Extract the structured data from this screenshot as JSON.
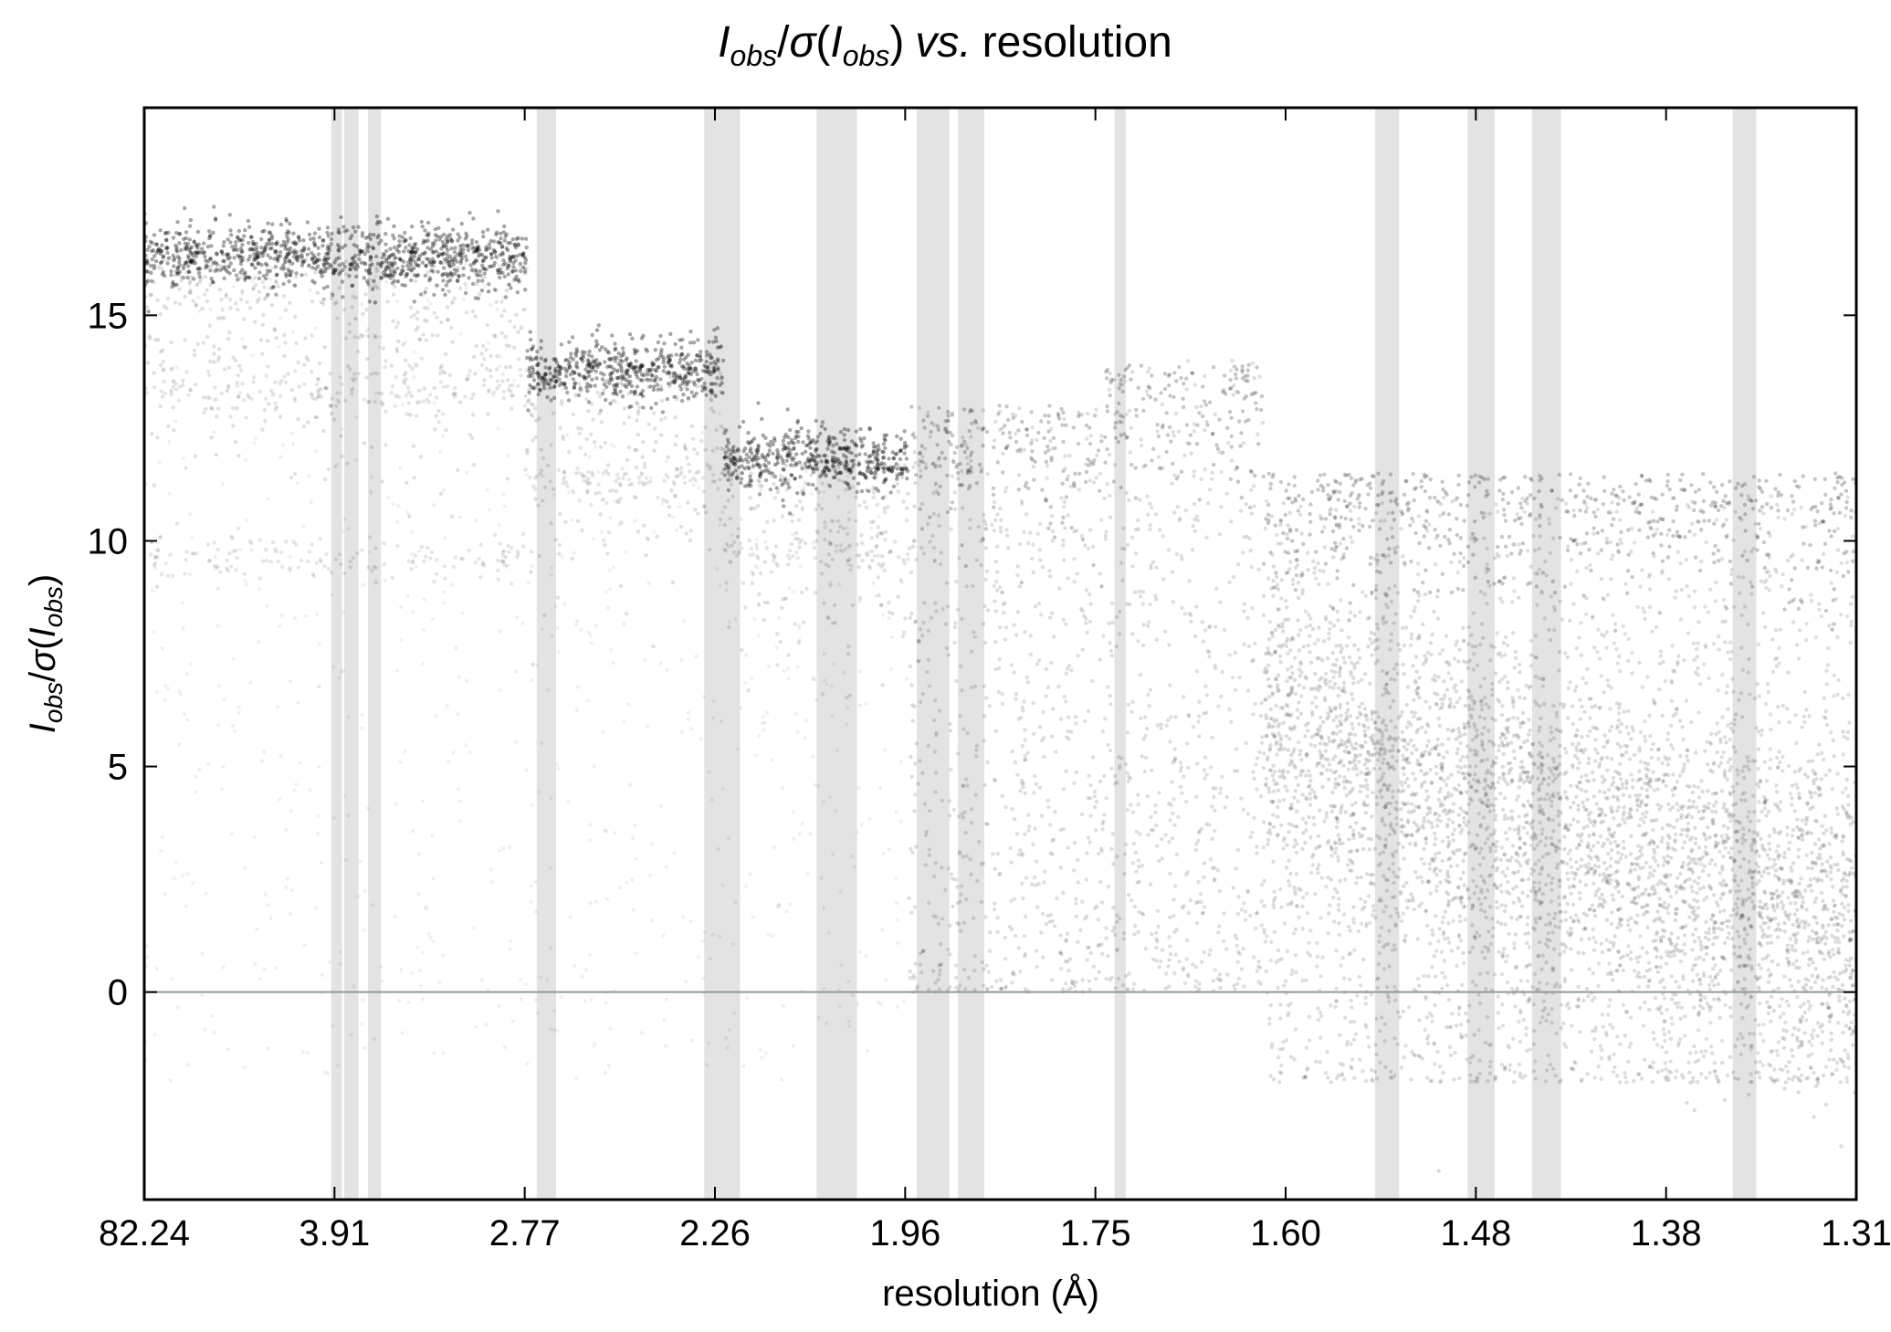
{
  "chart_data": {
    "type": "scatter",
    "title": "I_obs/σ(I_obs) vs. resolution",
    "title_parts": {
      "i": "I",
      "sub": "obs",
      "slash": "/",
      "sigma": "σ",
      "lparen": "(",
      "rparen": ")",
      "vs": "vs.",
      "rest": "resolution"
    },
    "xlabel": "resolution (Å)",
    "ylabel": "I_obs/σ(I_obs)",
    "x_scale": "inverse-square resolution",
    "x_tick_labels": [
      "82.24",
      "3.91",
      "2.77",
      "2.26",
      "1.96",
      "1.75",
      "1.60",
      "1.48",
      "1.38",
      "1.31"
    ],
    "xlim_resolution": [
      82.24,
      1.31
    ],
    "ylim": [
      -4.6,
      19.6
    ],
    "y_ticks": [
      0,
      5,
      10,
      15
    ],
    "y_tick_labels": [
      "0",
      "5",
      "10",
      "15"
    ],
    "zero_line": {
      "y": 0,
      "color": "#8e9a99"
    },
    "grid": false,
    "point_color": "#000000",
    "excluded_band_color": "#e3e3e3",
    "excluded_bands_resolution": [
      [
        3.96,
        3.85
      ],
      [
        3.83,
        3.7
      ],
      [
        3.62,
        3.52
      ],
      [
        2.735,
        2.67
      ],
      [
        2.29,
        2.22
      ],
      [
        2.09,
        2.03
      ],
      [
        1.95,
        1.91
      ],
      [
        1.9,
        1.87
      ],
      [
        1.74,
        1.73
      ],
      [
        1.545,
        1.53
      ],
      [
        1.49,
        1.475
      ],
      [
        1.455,
        1.44
      ],
      [
        1.36,
        1.35
      ]
    ],
    "series": [
      {
        "segments": [
          {
            "res_range": [
              82.24,
              2.77
            ],
            "i_sigma_main": 16.3,
            "i_sigma_faint_bands": [
              13.3,
              9.6
            ]
          },
          {
            "res_range": [
              2.77,
              2.25
            ],
            "i_sigma_main": 13.8,
            "i_sigma_faint_bands": [
              11.3
            ]
          },
          {
            "res_range": [
              2.25,
              1.96
            ],
            "i_sigma_main": 11.8,
            "i_sigma_faint_bands": [
              9.8
            ]
          },
          {
            "res_range": [
              1.96,
              1.75
            ],
            "i_sigma_upper_edge": 13.0,
            "i_sigma_spread": [
              0,
              13
            ]
          },
          {
            "res_range": [
              1.75,
              1.62
            ],
            "i_sigma_upper_edge": 13.9,
            "i_sigma_spread": [
              0,
              14
            ]
          },
          {
            "res_range": [
              1.62,
              1.31
            ],
            "i_sigma_upper_edge": 11.5,
            "i_sigma_spread": [
              -2,
              11
            ],
            "i_sigma_dense_center": 1.5
          }
        ]
      }
    ]
  }
}
